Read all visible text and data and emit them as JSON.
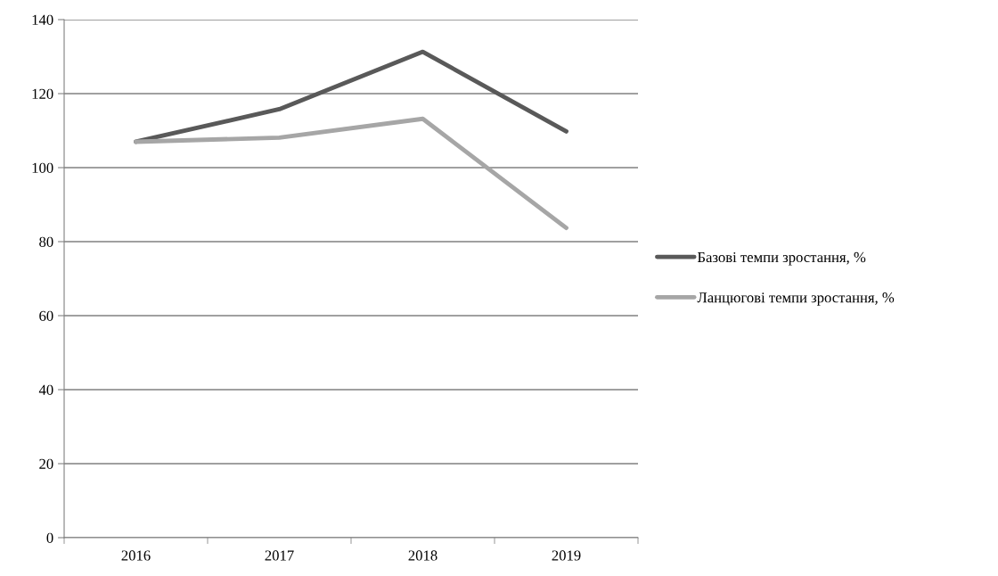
{
  "chart_data": {
    "type": "line",
    "categories": [
      "2016",
      "2017",
      "2018",
      "2019"
    ],
    "series": [
      {
        "name": "Базові темпи зростання, %",
        "color": "#595959",
        "values": [
          107.0,
          115.8,
          131.3,
          109.8
        ]
      },
      {
        "name": "Ланцюгові темпи зростання, %",
        "color": "#a6a6a6",
        "values": [
          107.0,
          108.1,
          113.2,
          83.7
        ]
      }
    ],
    "ylim": [
      0,
      140
    ],
    "yticks": [
      0,
      20,
      40,
      60,
      80,
      100,
      120,
      140
    ],
    "grid": "y",
    "legend": "right",
    "marker": "none",
    "line_style": "solid"
  }
}
